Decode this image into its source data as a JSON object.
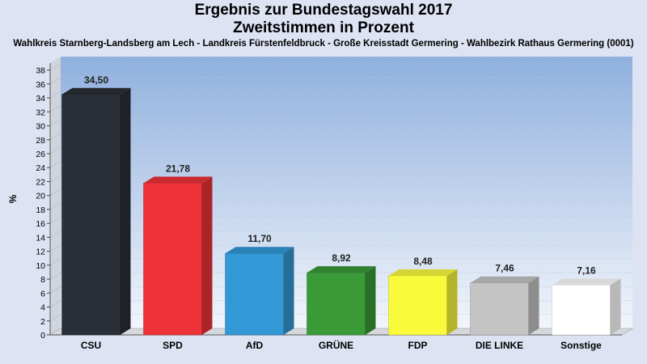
{
  "chart_data": {
    "type": "bar",
    "title": "Ergebnis zur Bundestagswahl 2017",
    "title2": "Zweitstimmen in Prozent",
    "subtitle": "Wahlkreis Starnberg-Landsberg am Lech - Landkreis Fürstenfeldbruck - Große Kreisstadt Germering - Wahlbezirk Rathaus Germering (0001)",
    "ylabel": "%",
    "xlabel": "",
    "ylim": [
      0,
      39
    ],
    "ytick_step": 2,
    "grid": true,
    "categories": [
      "CSU",
      "SPD",
      "AfD",
      "GRÜNE",
      "FDP",
      "DIE LINKE",
      "Sonstige"
    ],
    "values": [
      34.5,
      21.78,
      11.7,
      8.92,
      8.48,
      7.46,
      7.16
    ],
    "value_labels": [
      "34,50",
      "21,78",
      "11,70",
      "8,92",
      "8,48",
      "7,46",
      "7,16"
    ],
    "colors": [
      "#2a2e36",
      "#ee3338",
      "#3399d6",
      "#3a9a38",
      "#fafa3c",
      "#c4c4c4",
      "#ffffff"
    ]
  }
}
